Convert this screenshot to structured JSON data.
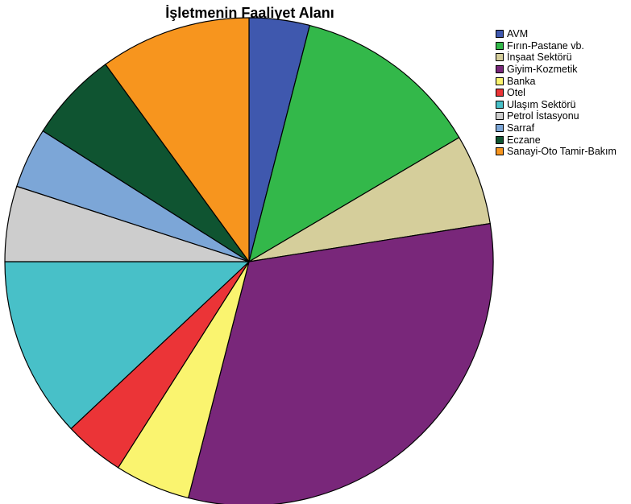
{
  "chart_data": {
    "type": "pie",
    "title": "İşletmenin Faaliyet Alanı",
    "legend_position": "right",
    "slices": [
      {
        "label": "AVM",
        "value": 4.0,
        "color": "#3F58AE"
      },
      {
        "label": "Fırın-Pastane vb.",
        "value": 12.5,
        "color": "#33B84A"
      },
      {
        "label": "İnşaat Sektörü",
        "value": 6.0,
        "color": "#D5CE9B"
      },
      {
        "label": "Giyim-Kozmetik",
        "value": 31.5,
        "color": "#79277A"
      },
      {
        "label": "Banka",
        "value": 5.0,
        "color": "#FAF46F"
      },
      {
        "label": "Otel",
        "value": 4.0,
        "color": "#EB3437"
      },
      {
        "label": "Ulaşım Sektörü",
        "value": 12.0,
        "color": "#48C0C8"
      },
      {
        "label": "Petrol İstasyonu",
        "value": 5.0,
        "color": "#CDCDCD"
      },
      {
        "label": "Sarraf",
        "value": 4.0,
        "color": "#7CA6D7"
      },
      {
        "label": "Eczane",
        "value": 6.0,
        "color": "#0F5431"
      },
      {
        "label": "Sanayi-Oto Tamir-Bakım",
        "value": 10.0,
        "color": "#F7951E"
      }
    ]
  }
}
